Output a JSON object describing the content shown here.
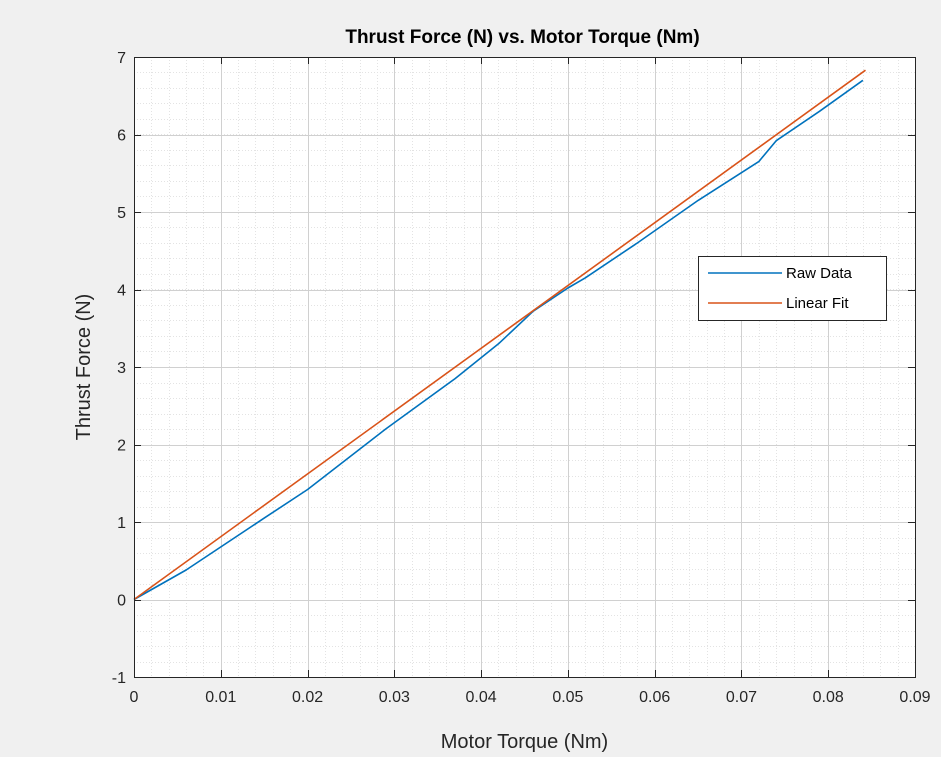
{
  "chart_data": {
    "type": "line",
    "title": "Thrust Force (N) vs. Motor Torque (Nm)",
    "xlabel": "Motor Torque (Nm)",
    "ylabel": "Thrust Force (N)",
    "xlim": [
      0,
      0.09
    ],
    "ylim": [
      -1,
      7
    ],
    "xticks": [
      "0",
      "0.01",
      "0.02",
      "0.03",
      "0.04",
      "0.05",
      "0.06",
      "0.07",
      "0.08",
      "0.09"
    ],
    "yticks": [
      "-1",
      "0",
      "1",
      "2",
      "3",
      "4",
      "5",
      "6",
      "7"
    ],
    "grid": true,
    "minor_grid": true,
    "legend_position": "right",
    "series": [
      {
        "name": "Raw Data",
        "color": "#0072BD",
        "x": [
          0,
          0.006,
          0.015,
          0.02,
          0.029,
          0.037,
          0.042,
          0.046,
          0.05,
          0.052,
          0.058,
          0.065,
          0.072,
          0.074,
          0.079,
          0.084
        ],
        "y": [
          0,
          0.38,
          1.05,
          1.42,
          2.2,
          2.85,
          3.3,
          3.72,
          4.02,
          4.15,
          4.6,
          5.15,
          5.65,
          5.92,
          6.3,
          6.7
        ]
      },
      {
        "name": "Linear Fit",
        "color": "#D95319",
        "x": [
          0,
          0.0843
        ],
        "y": [
          0,
          6.83
        ]
      }
    ]
  }
}
